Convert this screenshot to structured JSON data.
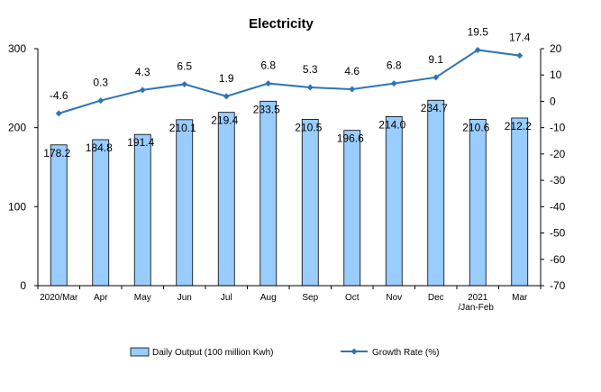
{
  "chart_data": {
    "type": "bar",
    "title": "Electricity",
    "categories": [
      [
        "2020/Mar"
      ],
      [
        "Apr"
      ],
      [
        "May"
      ],
      [
        "Jun"
      ],
      [
        "Jul"
      ],
      [
        "Aug"
      ],
      [
        "Sep"
      ],
      [
        "Oct"
      ],
      [
        "Nov"
      ],
      [
        "Dec"
      ],
      [
        "2021",
        "/Jan-Feb"
      ],
      [
        "Mar"
      ]
    ],
    "series": [
      {
        "name": "Daily Output (100 million Kwh)",
        "type": "bar",
        "axis": "left",
        "color": "#99CCFF",
        "values": [
          178.2,
          184.8,
          191.4,
          210.1,
          219.4,
          233.5,
          210.5,
          196.6,
          214.0,
          234.7,
          210.6,
          212.2
        ],
        "labels": [
          "178.2",
          "184.8",
          "191.4",
          "210.1",
          "219.4",
          "233.5",
          "210.5",
          "196.6",
          "214.0",
          "234.7",
          "210.6",
          "212.2"
        ]
      },
      {
        "name": "Growth Rate (%)",
        "type": "line",
        "axis": "right",
        "color": "#2E75B6",
        "values": [
          -4.6,
          0.3,
          4.3,
          6.5,
          1.9,
          6.8,
          5.3,
          4.6,
          6.8,
          9.1,
          19.5,
          17.4
        ],
        "labels": [
          "-4.6",
          "0.3",
          "4.3",
          "6.5",
          "1.9",
          "6.8",
          "5.3",
          "4.6",
          "6.8",
          "9.1",
          "19.5",
          "17.4"
        ]
      }
    ],
    "y_left": {
      "ylim": [
        0,
        300
      ],
      "ticks": [
        "0",
        "100",
        "200",
        "300"
      ]
    },
    "y_right": {
      "ylim": [
        -70,
        20
      ],
      "ticks": [
        "20",
        "10",
        "0",
        "-10",
        "-20",
        "-30",
        "-40",
        "-50",
        "-60",
        "-70"
      ]
    },
    "grid": false,
    "legend": "bottom"
  }
}
